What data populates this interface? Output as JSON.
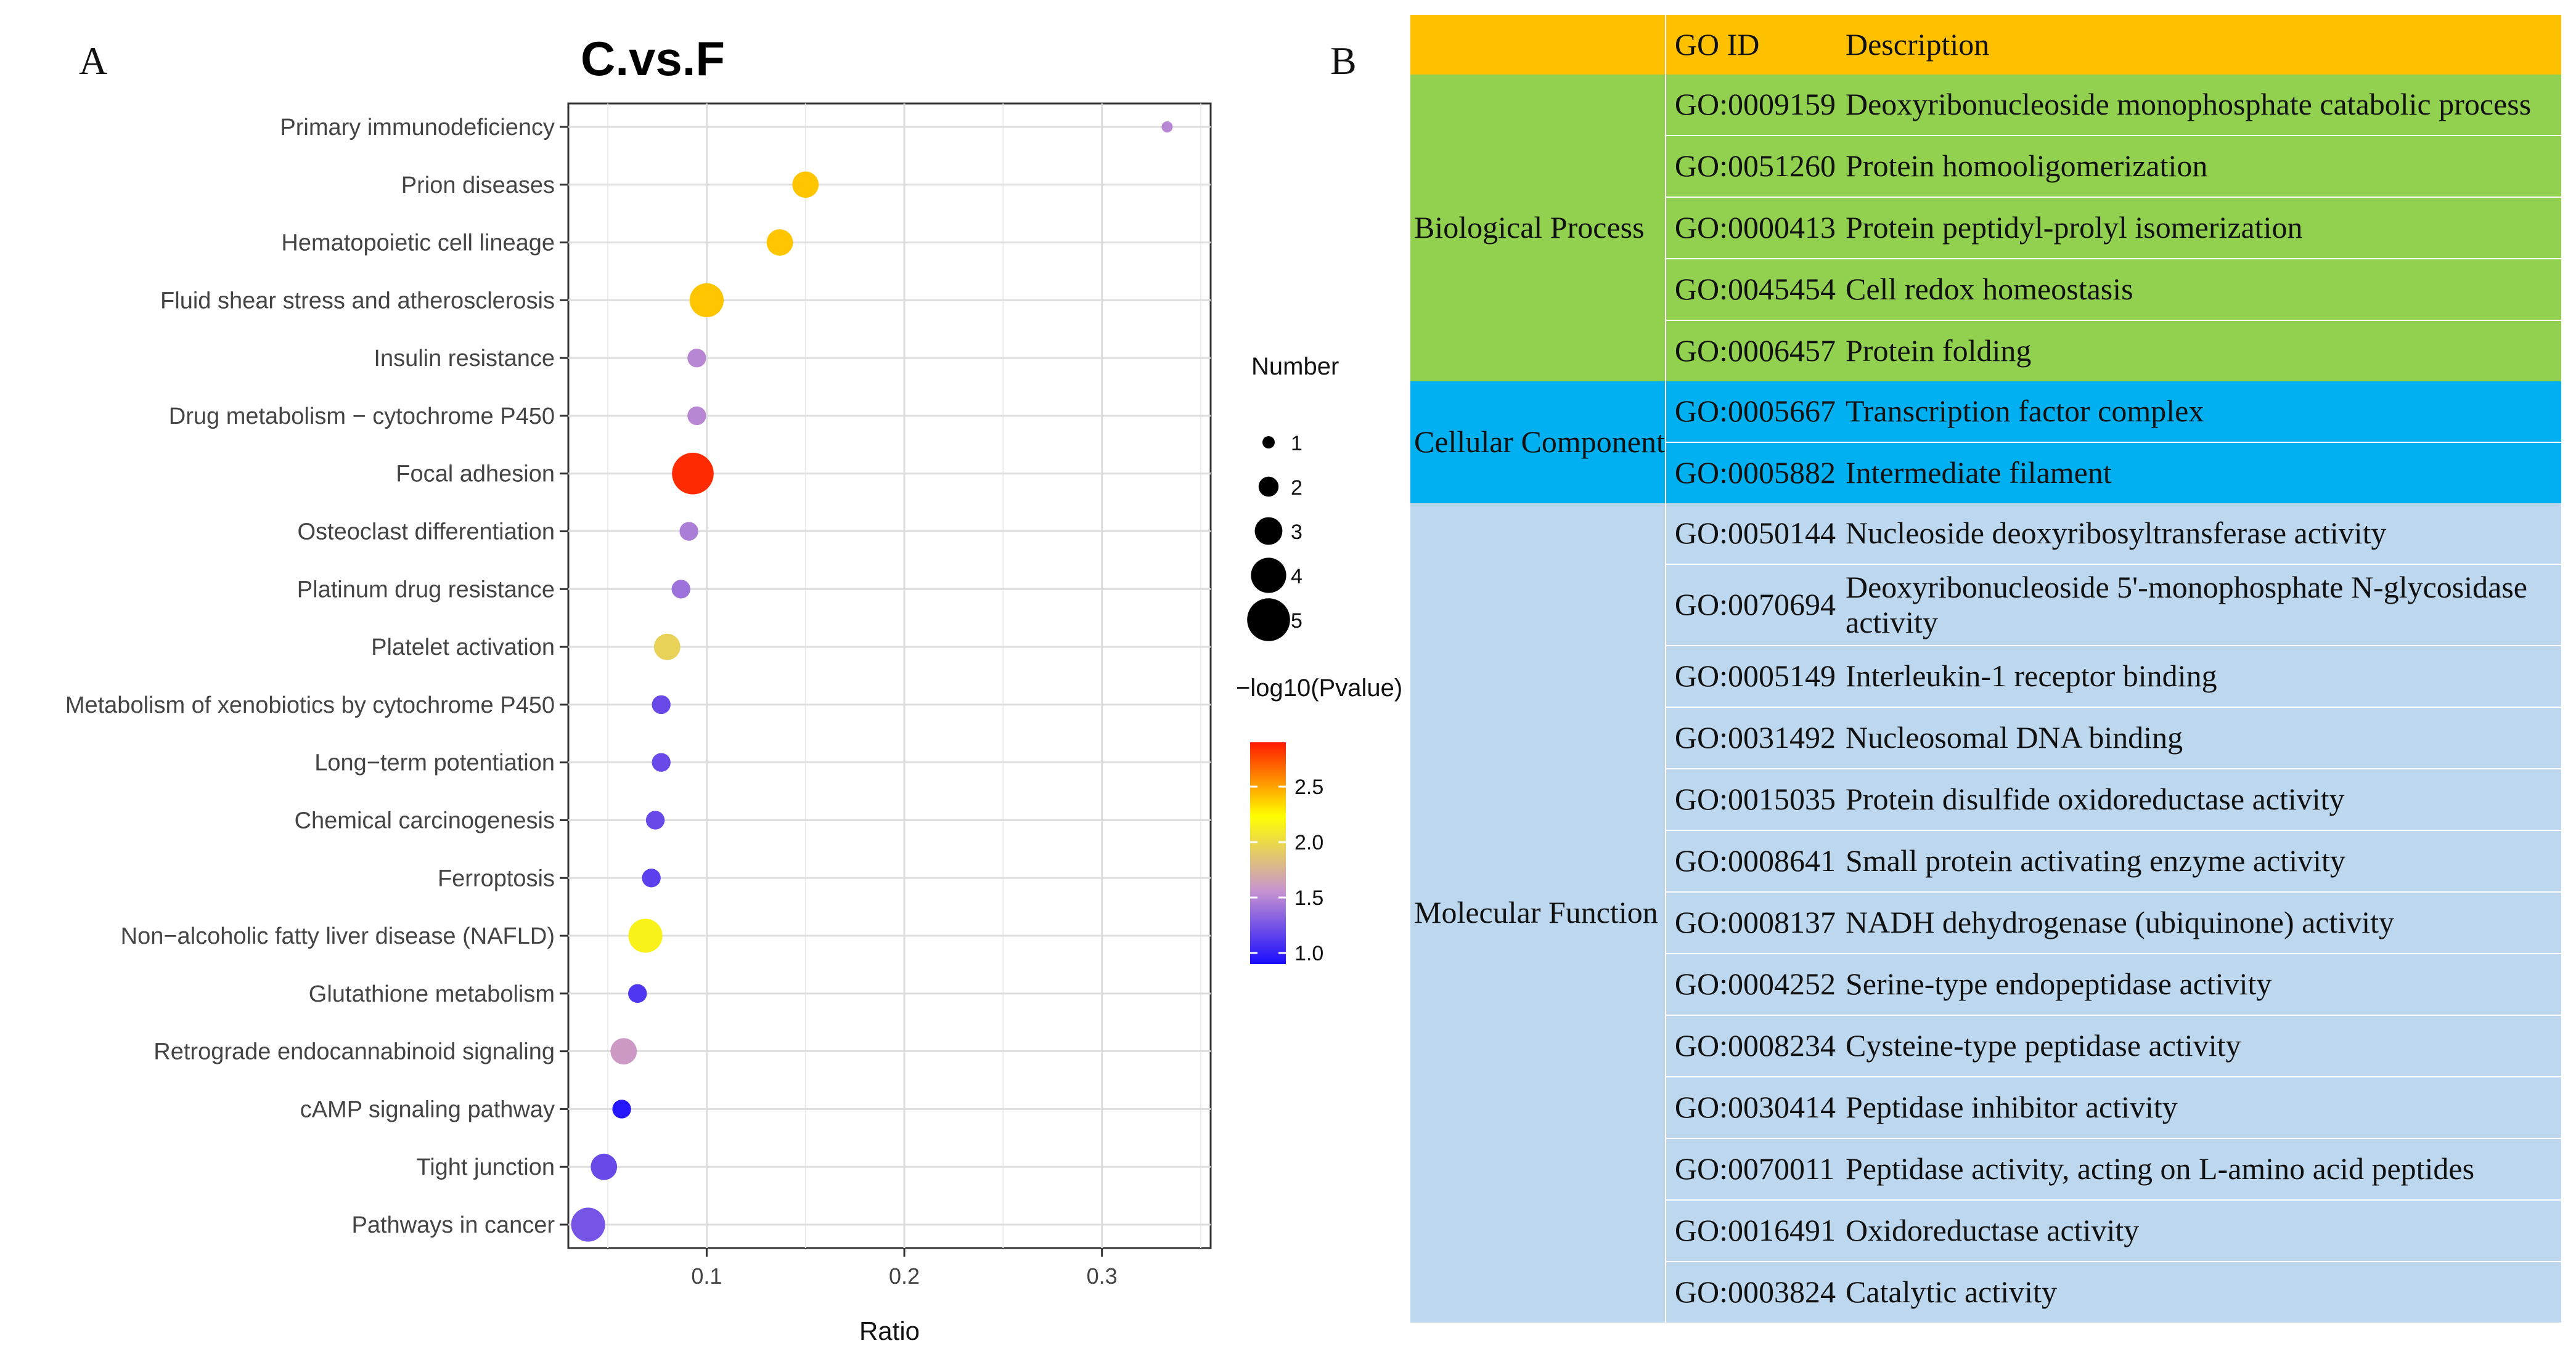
{
  "panel_a_letter": "A",
  "panel_b_letter": "B",
  "chart_data": {
    "type": "scatter",
    "title": "C.vs.F",
    "xlabel": "Ratio",
    "ylabel": "",
    "xlim": [
      0.03,
      0.355
    ],
    "xticks": [
      0.1,
      0.2,
      0.3
    ],
    "xtick_labels": [
      "0.1",
      "0.2",
      "0.3"
    ],
    "grid": true,
    "categories": [
      "Primary immunodeficiency",
      "Prion diseases",
      "Hematopoietic cell lineage",
      "Fluid shear stress and atherosclerosis",
      "Insulin resistance",
      "Drug metabolism − cytochrome P450",
      "Focal adhesion",
      "Osteoclast differentiation",
      "Platinum drug resistance",
      "Platelet activation",
      "Metabolism of xenobiotics by cytochrome P450",
      "Long−term potentiation",
      "Chemical carcinogenesis",
      "Ferroptosis",
      "Non−alcoholic fatty liver disease (NAFLD)",
      "Glutathione metabolism",
      "Retrograde endocannabinoid signaling",
      "cAMP signaling pathway",
      "Tight junction",
      "Pathways in cancer"
    ],
    "ratio": [
      0.333,
      0.15,
      0.137,
      0.1,
      0.095,
      0.095,
      0.093,
      0.091,
      0.087,
      0.08,
      0.077,
      0.077,
      0.074,
      0.072,
      0.069,
      0.065,
      0.058,
      0.057,
      0.048,
      0.04
    ],
    "number": [
      1,
      3,
      3,
      4,
      2,
      2,
      5,
      2,
      2,
      3,
      2,
      2,
      2,
      2,
      4,
      2,
      3,
      2,
      3,
      4
    ],
    "neg_log10_pvalue": [
      1.5,
      2.4,
      2.4,
      2.4,
      1.5,
      1.5,
      2.85,
      1.45,
      1.4,
      1.95,
      1.2,
      1.2,
      1.2,
      1.15,
      2.15,
      1.1,
      1.6,
      0.95,
      1.2,
      1.25
    ],
    "size_legend": {
      "title": "Number",
      "values": [
        1,
        2,
        3,
        4,
        5
      ],
      "labels": [
        "1",
        "2",
        "3",
        "4",
        "5"
      ]
    },
    "color_legend": {
      "title": "−log10(Pvalue)",
      "range": [
        0.9,
        2.9
      ],
      "ticks": [
        1.0,
        1.5,
        2.0,
        2.5
      ],
      "tick_labels": [
        "1.0",
        "1.5",
        "2.0",
        "2.5"
      ],
      "colors": [
        "#1a0dff",
        "#c995cf",
        "#ffff00",
        "#ff1a00"
      ]
    }
  },
  "go_table": {
    "header": {
      "category": "",
      "go_id": "GO ID",
      "description": "Description"
    },
    "colors": {
      "header": "#ffc000",
      "biological_process": "#92d050",
      "cellular_component": "#00b0f0",
      "molecular_function": "#bdd7ee"
    },
    "groups": [
      {
        "category": "Biological Process",
        "rows": [
          {
            "go_id": "GO:0009159",
            "description": "Deoxyribonucleoside monophosphate catabolic process"
          },
          {
            "go_id": "GO:0051260",
            "description": "Protein homooligomerization"
          },
          {
            "go_id": "GO:0000413",
            "description": "Protein peptidyl-prolyl isomerization"
          },
          {
            "go_id": "GO:0045454",
            "description": "Cell redox homeostasis"
          },
          {
            "go_id": "GO:0006457",
            "description": "Protein folding"
          }
        ]
      },
      {
        "category": "Cellular Component",
        "rows": [
          {
            "go_id": "GO:0005667",
            "description": "Transcription factor complex"
          },
          {
            "go_id": "GO:0005882",
            "description": "Intermediate filament"
          }
        ]
      },
      {
        "category": "Molecular Function",
        "rows": [
          {
            "go_id": "GO:0050144",
            "description": "Nucleoside deoxyribosyltransferase activity"
          },
          {
            "go_id": "GO:0070694",
            "description": "Deoxyribonucleoside 5'-monophosphate N-glycosidase activity"
          },
          {
            "go_id": "GO:0005149",
            "description": "Interleukin-1 receptor binding"
          },
          {
            "go_id": "GO:0031492",
            "description": "Nucleosomal DNA binding"
          },
          {
            "go_id": "GO:0015035",
            "description": "Protein disulfide oxidoreductase activity"
          },
          {
            "go_id": "GO:0008641",
            "description": "Small protein activating enzyme activity"
          },
          {
            "go_id": "GO:0008137",
            "description": "NADH dehydrogenase (ubiquinone) activity"
          },
          {
            "go_id": "GO:0004252",
            "description": "Serine-type endopeptidase activity"
          },
          {
            "go_id": "GO:0008234",
            "description": "Cysteine-type peptidase activity"
          },
          {
            "go_id": "GO:0030414",
            "description": "Peptidase inhibitor activity"
          },
          {
            "go_id": "GO:0070011",
            "description": "Peptidase activity, acting on L-amino acid peptides"
          },
          {
            "go_id": "GO:0016491",
            "description": "Oxidoreductase activity"
          },
          {
            "go_id": "GO:0003824",
            "description": "Catalytic activity"
          }
        ]
      }
    ]
  }
}
